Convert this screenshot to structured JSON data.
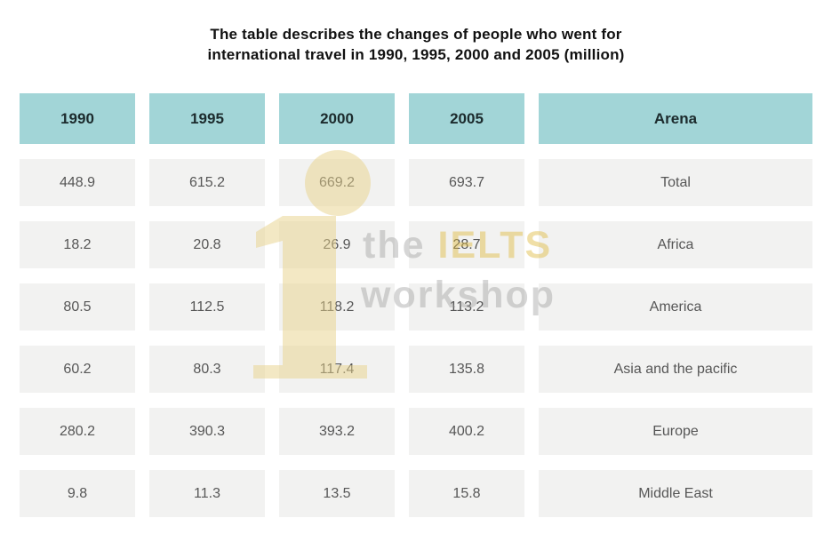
{
  "title": {
    "line1": "The table describes the changes of people who went for",
    "line2": "international travel in 1990, 1995, 2000 and 2005 (million)"
  },
  "watermark": {
    "word1": "the",
    "word2": "IELTS",
    "word3": "workshop",
    "logo": "numeral-one-with-dot"
  },
  "colors": {
    "header_bg": "#a2d5d7",
    "header_text": "#1c2b2d",
    "cell_bg": "#f2f2f1",
    "cell_text": "#565656",
    "title_text": "#111111",
    "watermark_yellow": "#f1e9c5",
    "watermark_gray": "#dadada"
  },
  "chart_data": {
    "type": "table",
    "title": "The table describes the changes of people who went for international travel in 1990, 1995, 2000 and 2005 (million)",
    "columns": [
      "1990",
      "1995",
      "2000",
      "2005",
      "Arena"
    ],
    "rows": [
      [
        "448.9",
        "615.2",
        "669.2",
        "693.7",
        "Total"
      ],
      [
        "18.2",
        "20.8",
        "26.9",
        "28.7",
        "Africa"
      ],
      [
        "80.5",
        "112.5",
        "118.2",
        "113.2",
        "America"
      ],
      [
        "60.2",
        "80.3",
        "117.4",
        "135.8",
        "Asia and the pacific"
      ],
      [
        "280.2",
        "390.3",
        "393.2",
        "400.2",
        "Europe"
      ],
      [
        "9.8",
        "11.3",
        "13.5",
        "15.8",
        "Middle East"
      ]
    ]
  }
}
